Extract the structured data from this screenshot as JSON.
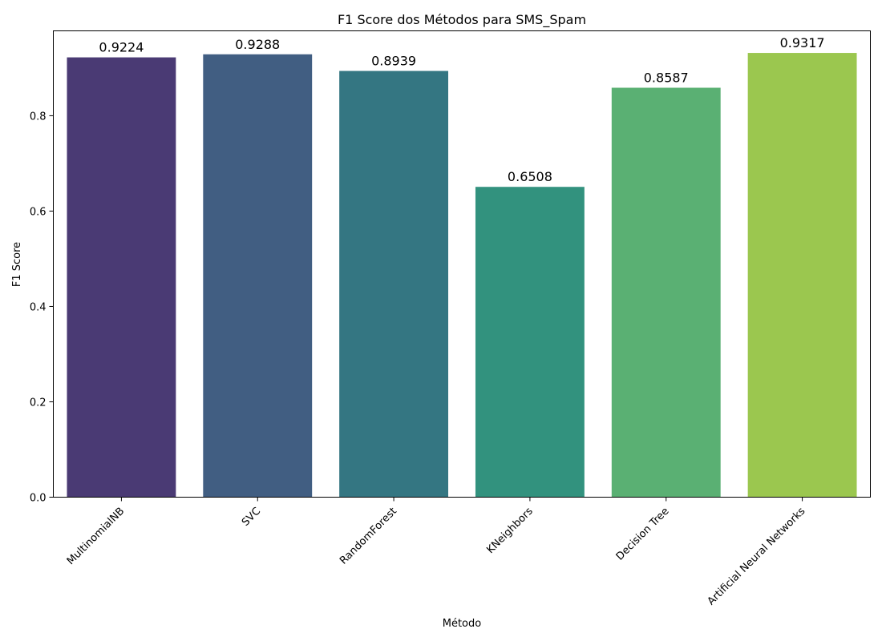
{
  "chart_data": {
    "type": "bar",
    "title": "F1 Score dos Métodos para SMS_Spam",
    "xlabel": "Método",
    "ylabel": "F1 Score",
    "categories": [
      "MultinomialNB",
      "SVC",
      "RandomForest",
      "KNeighbors",
      "Decision Tree",
      "Artificial Neural Networks"
    ],
    "values": [
      0.9224,
      0.9288,
      0.8939,
      0.6508,
      0.8587,
      0.9317
    ],
    "value_labels": [
      "0.9224",
      "0.9288",
      "0.8939",
      "0.6508",
      "0.8587",
      "0.9317"
    ],
    "colors": [
      "#4a3a74",
      "#415e82",
      "#347682",
      "#32927e",
      "#5ab073",
      "#9bc74f"
    ],
    "y_ticks": [
      0.0,
      0.2,
      0.4,
      0.6,
      0.8
    ],
    "y_tick_labels": [
      "0.0",
      "0.2",
      "0.4",
      "0.6",
      "0.8"
    ],
    "ylim": [
      0,
      0.978
    ],
    "grid": false,
    "legend": "none"
  }
}
